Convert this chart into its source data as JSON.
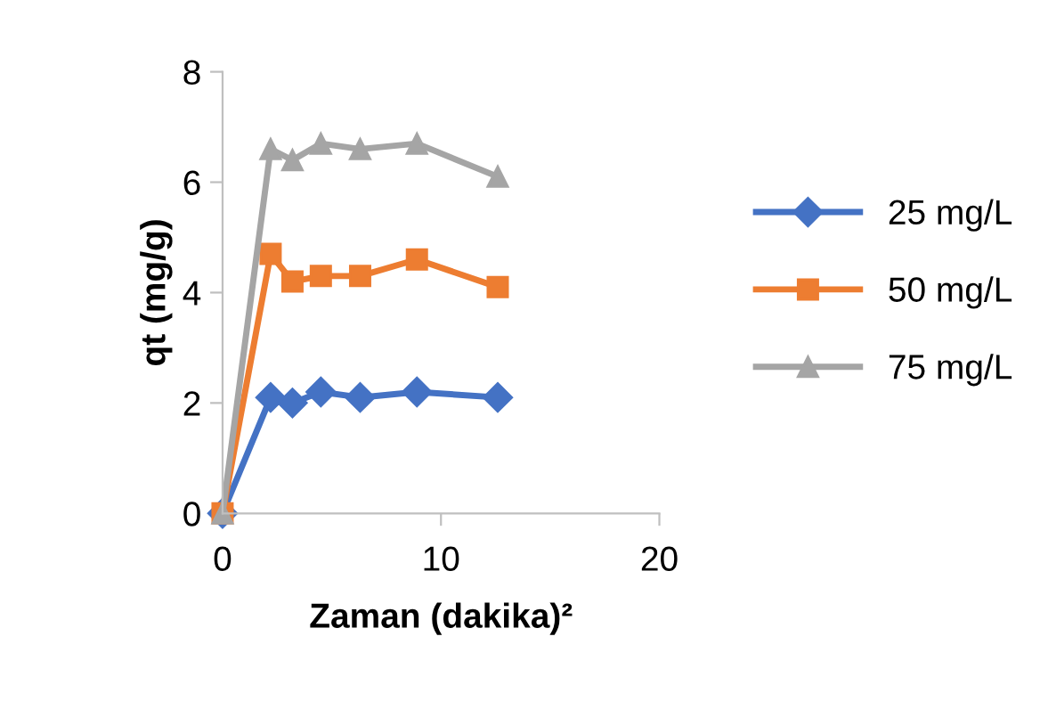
{
  "chart_data": {
    "type": "line",
    "xlabel": "Zaman (dakika)²",
    "ylabel": "qt (mg/g)",
    "x": [
      0,
      2.2,
      3.2,
      4.5,
      6.3,
      8.9,
      12.6
    ],
    "series": [
      {
        "name": "25 mg/L",
        "color": "#4472c4",
        "marker": "diamond",
        "values": [
          0,
          2.1,
          2.0,
          2.2,
          2.1,
          2.2,
          2.1
        ]
      },
      {
        "name": "50 mg/L",
        "color": "#ed7d31",
        "marker": "square",
        "values": [
          0,
          4.7,
          4.2,
          4.3,
          4.3,
          4.6,
          4.1
        ]
      },
      {
        "name": "75 mg/L",
        "color": "#a5a5a5",
        "marker": "triangle",
        "values": [
          0,
          6.6,
          6.4,
          6.7,
          6.6,
          6.7,
          6.1
        ]
      }
    ],
    "xlim": [
      0,
      20
    ],
    "xticks": [
      0,
      10,
      20
    ],
    "ylim": [
      0,
      8
    ],
    "yticks": [
      0,
      2,
      4,
      6,
      8
    ],
    "grid": false,
    "legend": "right",
    "line_style": "solid"
  }
}
